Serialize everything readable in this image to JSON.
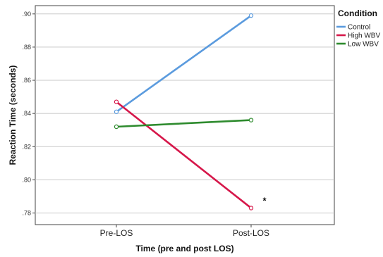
{
  "chart_data": {
    "type": "line",
    "title": "",
    "xlabel": "Time (pre and post LOS)",
    "ylabel": "Reaction Time (seconds)",
    "categories": [
      "Pre-LOS",
      "Post-LOS"
    ],
    "ylim": [
      0.773,
      0.905
    ],
    "yticks": [
      0.78,
      0.8,
      0.82,
      0.84,
      0.86,
      0.88,
      0.9
    ],
    "ytick_labels": [
      ".78",
      ".80",
      ".82",
      ".84",
      ".86",
      ".88",
      ".90"
    ],
    "grid": "horizontal",
    "legend": {
      "title": "Condition",
      "placement": "top-right, outside plot"
    },
    "series": [
      {
        "name": "Control",
        "color": "#5b9bde",
        "values": [
          0.841,
          0.899
        ]
      },
      {
        "name": "High WBV",
        "color": "#d6174a",
        "values": [
          0.847,
          0.783
        ]
      },
      {
        "name": "Low WBV",
        "color": "#2e8b2e",
        "values": [
          0.832,
          0.836
        ]
      }
    ],
    "annotations": [
      {
        "text": "*",
        "category": "Post-LOS",
        "near_series": "High WBV"
      }
    ]
  }
}
